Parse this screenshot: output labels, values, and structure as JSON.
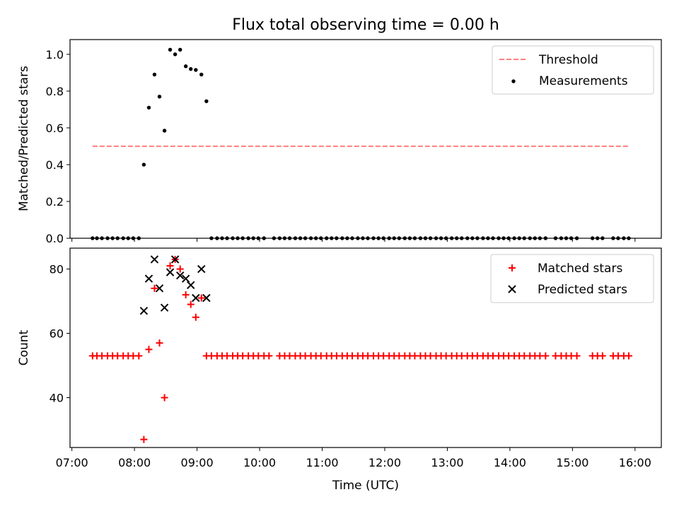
{
  "chart_data": [
    {
      "type": "scatter",
      "title": "Flux total observing time = 0.00 h",
      "xlabel": "",
      "ylabel": "Matched/Predicted stars",
      "xlim": [
        6.97,
        16.42
      ],
      "ylim": [
        0,
        1.08
      ],
      "yticks": [
        "0.0",
        "0.2",
        "0.4",
        "0.6",
        "0.8",
        "1.0"
      ],
      "legend_position": "top-right",
      "legend": [
        "Threshold",
        "Measurements"
      ],
      "threshold": {
        "value": 0.5,
        "x_start": 7.33,
        "x_end": 15.92,
        "color": "#ff7f7f"
      },
      "measurements": {
        "peak_x": [
          8.15,
          8.23,
          8.32,
          8.4,
          8.48,
          8.57,
          8.65,
          8.73,
          8.82,
          8.9,
          8.98,
          9.07,
          9.15
        ],
        "peak_y": [
          0.4,
          0.71,
          0.89,
          0.77,
          0.585,
          1.025,
          1.0,
          1.025,
          0.935,
          0.92,
          0.915,
          0.89,
          0.745
        ],
        "zero_x": [
          7.33,
          7.4,
          7.48,
          7.57,
          7.65,
          7.73,
          7.82,
          7.9,
          7.98,
          8.07,
          9.23,
          9.32,
          9.4,
          9.48,
          9.57,
          9.65,
          9.73,
          9.82,
          9.9,
          9.98,
          10.07,
          10.23,
          10.32,
          10.4,
          10.48,
          10.57,
          10.65,
          10.73,
          10.82,
          10.9,
          10.98,
          11.07,
          11.15,
          11.23,
          11.32,
          11.4,
          11.48,
          11.57,
          11.65,
          11.73,
          11.82,
          11.9,
          11.98,
          12.07,
          12.15,
          12.23,
          12.32,
          12.4,
          12.48,
          12.57,
          12.65,
          12.73,
          12.82,
          12.9,
          12.98,
          13.07,
          13.15,
          13.23,
          13.32,
          13.4,
          13.48,
          13.57,
          13.65,
          13.73,
          13.82,
          13.9,
          13.98,
          14.07,
          14.15,
          14.23,
          14.32,
          14.4,
          14.48,
          14.57,
          14.73,
          14.82,
          14.9,
          14.98,
          15.07,
          15.32,
          15.4,
          15.48,
          15.65,
          15.73,
          15.82,
          15.9
        ],
        "zero_y": 0,
        "color": "#000000"
      }
    },
    {
      "type": "scatter",
      "title": "",
      "xlabel": "Time (UTC)",
      "ylabel": "Count",
      "xlim": [
        6.97,
        16.42
      ],
      "ylim": [
        24.5,
        86.5
      ],
      "yticks": [
        "40",
        "60",
        "80"
      ],
      "xticks": [
        "07:00",
        "08:00",
        "09:00",
        "10:00",
        "11:00",
        "12:00",
        "13:00",
        "14:00",
        "15:00",
        "16:00"
      ],
      "legend_position": "top-right",
      "legend": [
        "Matched stars",
        "Predicted stars"
      ],
      "matched": {
        "peak_x": [
          8.15,
          8.23,
          8.32,
          8.4,
          8.48,
          8.57,
          8.65,
          8.73,
          8.82,
          8.9,
          8.98,
          9.07
        ],
        "peak_y": [
          27,
          55,
          74,
          57,
          40,
          81,
          83,
          80,
          72,
          69,
          65,
          71
        ],
        "flat_x": [
          7.33,
          7.4,
          7.48,
          7.57,
          7.65,
          7.73,
          7.82,
          7.9,
          7.98,
          8.07,
          9.15,
          9.23,
          9.32,
          9.4,
          9.48,
          9.57,
          9.65,
          9.73,
          9.82,
          9.9,
          9.98,
          10.07,
          10.15,
          10.32,
          10.4,
          10.48,
          10.57,
          10.65,
          10.73,
          10.82,
          10.9,
          10.98,
          11.07,
          11.15,
          11.23,
          11.32,
          11.4,
          11.48,
          11.57,
          11.65,
          11.73,
          11.82,
          11.9,
          11.98,
          12.07,
          12.15,
          12.23,
          12.32,
          12.4,
          12.48,
          12.57,
          12.65,
          12.73,
          12.82,
          12.9,
          12.98,
          13.07,
          13.15,
          13.23,
          13.32,
          13.4,
          13.48,
          13.57,
          13.65,
          13.73,
          13.82,
          13.9,
          13.98,
          14.07,
          14.15,
          14.23,
          14.32,
          14.4,
          14.48,
          14.57,
          14.73,
          14.82,
          14.9,
          14.98,
          15.07,
          15.32,
          15.4,
          15.48,
          15.65,
          15.73,
          15.82,
          15.9
        ],
        "flat_y": 53,
        "color": "#ff0000"
      },
      "predicted": {
        "x": [
          8.15,
          8.23,
          8.32,
          8.4,
          8.48,
          8.57,
          8.65,
          8.73,
          8.82,
          8.9,
          8.98,
          9.07,
          9.15
        ],
        "y": [
          67,
          77,
          83,
          74,
          68,
          79,
          83,
          78,
          77,
          75,
          71,
          80,
          71
        ],
        "color": "#000000"
      }
    }
  ]
}
